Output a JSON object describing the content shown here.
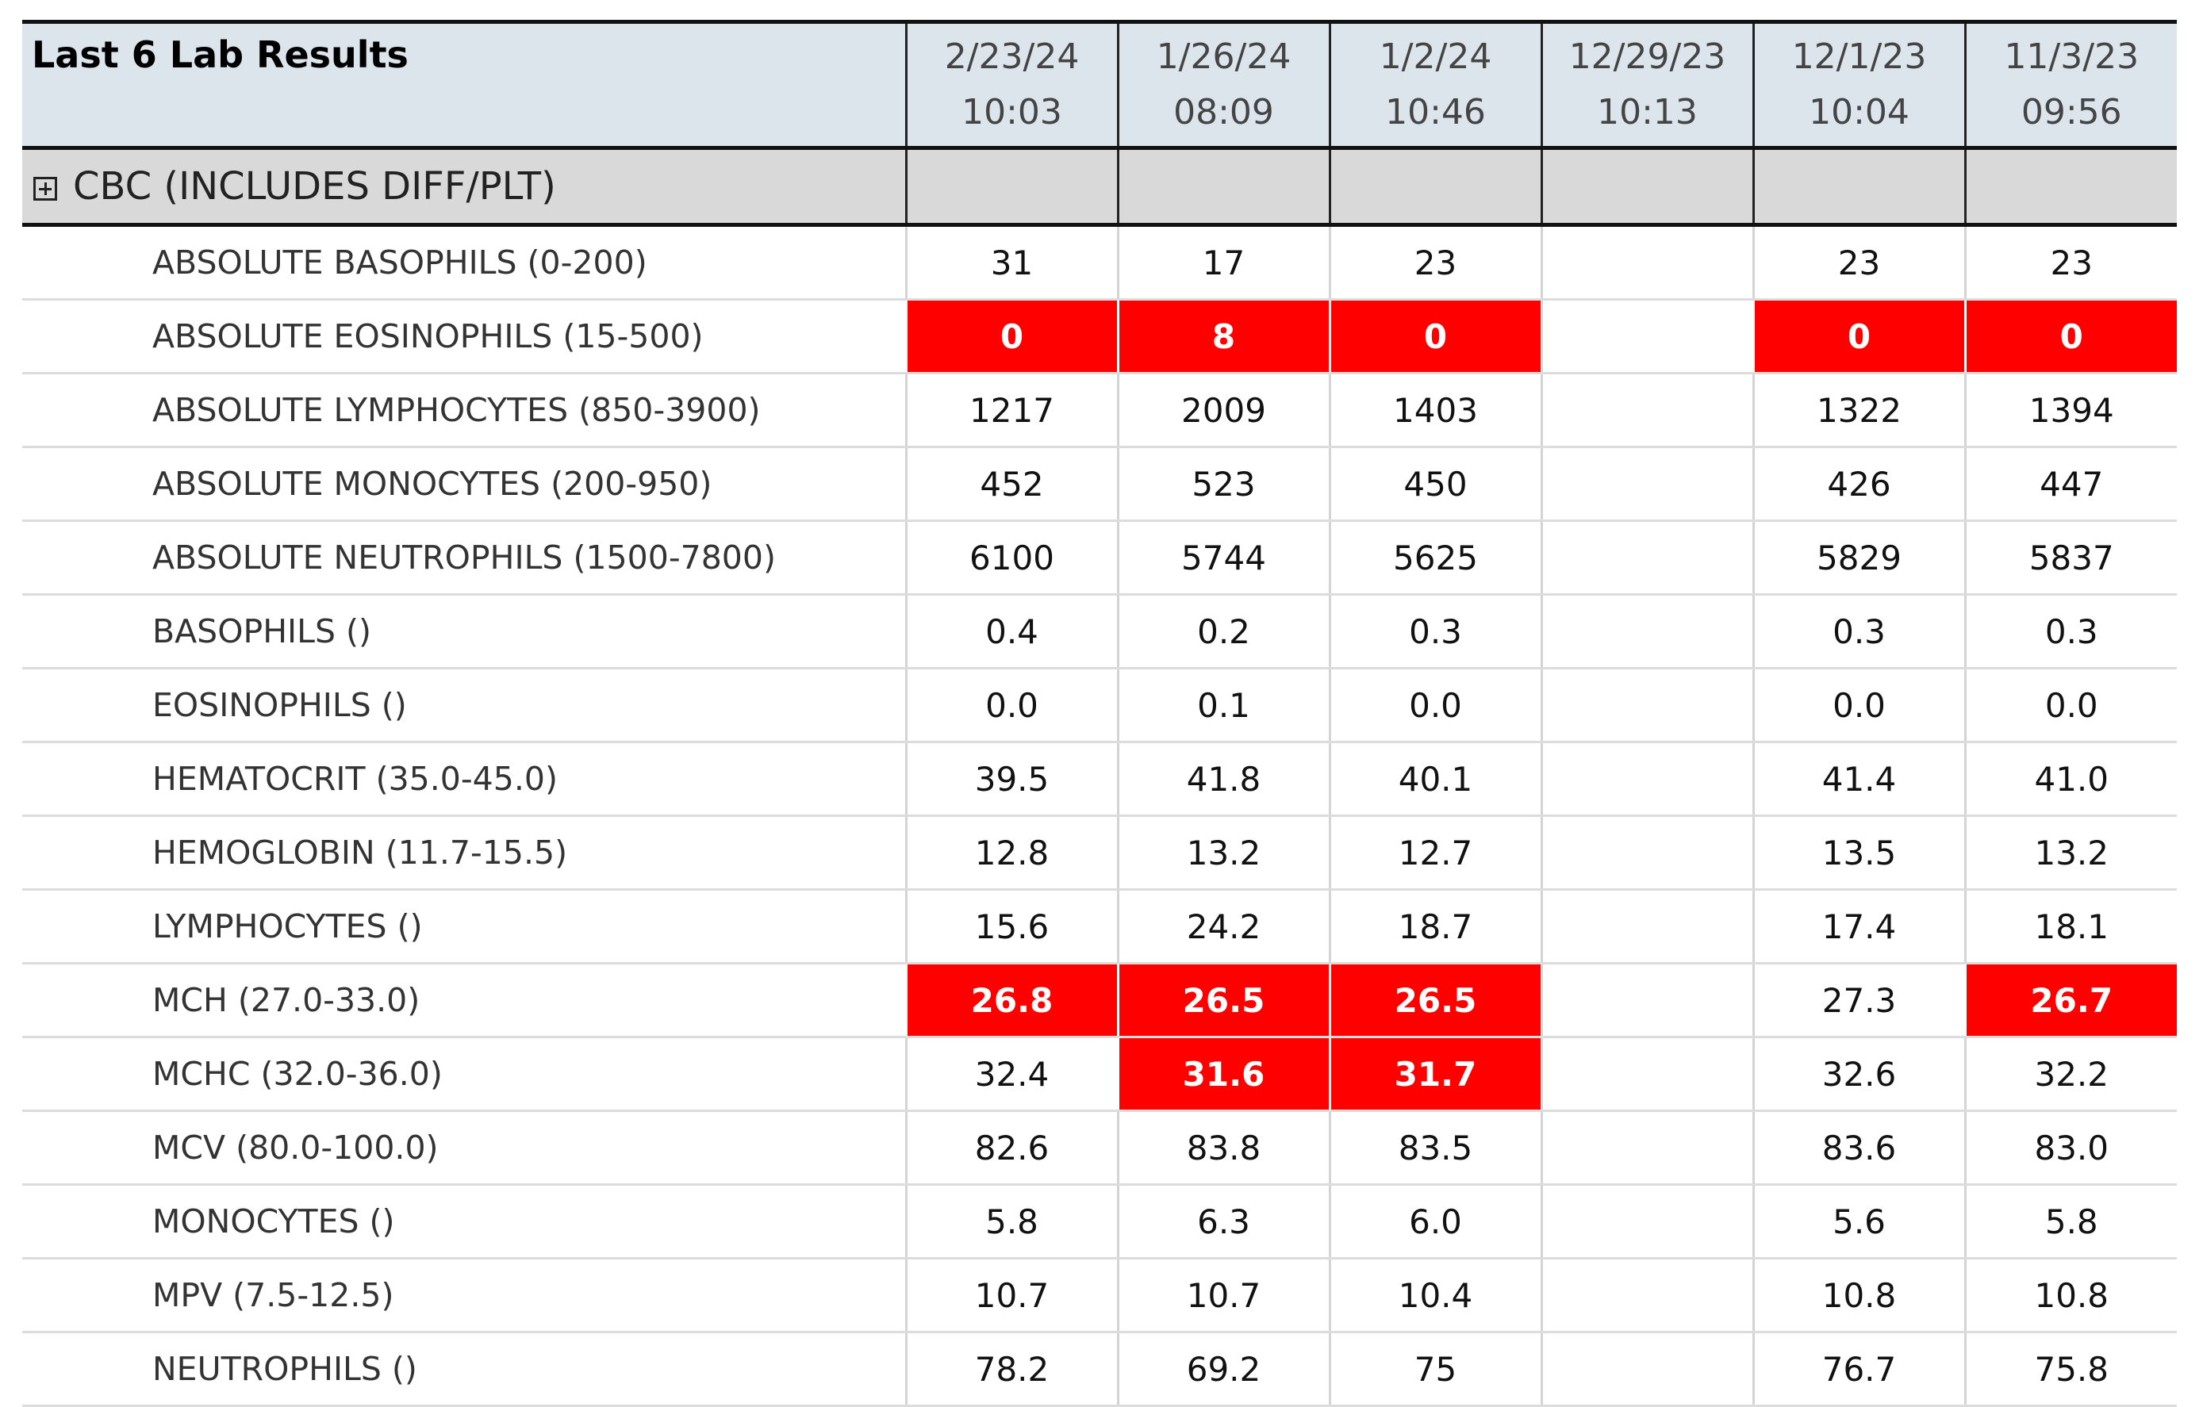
{
  "header": {
    "title": "Last 6 Lab Results",
    "columns": [
      {
        "date": "2/23/24",
        "time": "10:03"
      },
      {
        "date": "1/26/24",
        "time": "08:09"
      },
      {
        "date": "1/2/24",
        "time": "10:46"
      },
      {
        "date": "12/29/23",
        "time": "10:13"
      },
      {
        "date": "12/1/23",
        "time": "10:04"
      },
      {
        "date": "11/3/23",
        "time": "09:56"
      }
    ]
  },
  "group": {
    "label": "CBC (INCLUDES DIFF/PLT)"
  },
  "table": {
    "rows": [
      {
        "label": "ABSOLUTE BASOPHILS (0-200)",
        "values": [
          "31",
          "17",
          "23",
          null,
          "23",
          "23"
        ],
        "abnormal": [
          false,
          false,
          false,
          false,
          false,
          false
        ]
      },
      {
        "label": "ABSOLUTE EOSINOPHILS (15-500)",
        "values": [
          "0",
          "8",
          "0",
          null,
          "0",
          "0"
        ],
        "abnormal": [
          true,
          true,
          true,
          false,
          true,
          true
        ]
      },
      {
        "label": "ABSOLUTE LYMPHOCYTES (850-3900)",
        "values": [
          "1217",
          "2009",
          "1403",
          null,
          "1322",
          "1394"
        ],
        "abnormal": [
          false,
          false,
          false,
          false,
          false,
          false
        ]
      },
      {
        "label": "ABSOLUTE MONOCYTES (200-950)",
        "values": [
          "452",
          "523",
          "450",
          null,
          "426",
          "447"
        ],
        "abnormal": [
          false,
          false,
          false,
          false,
          false,
          false
        ]
      },
      {
        "label": "ABSOLUTE NEUTROPHILS (1500-7800)",
        "values": [
          "6100",
          "5744",
          "5625",
          null,
          "5829",
          "5837"
        ],
        "abnormal": [
          false,
          false,
          false,
          false,
          false,
          false
        ]
      },
      {
        "label": "BASOPHILS ()",
        "values": [
          "0.4",
          "0.2",
          "0.3",
          null,
          "0.3",
          "0.3"
        ],
        "abnormal": [
          false,
          false,
          false,
          false,
          false,
          false
        ]
      },
      {
        "label": "EOSINOPHILS ()",
        "values": [
          "0.0",
          "0.1",
          "0.0",
          null,
          "0.0",
          "0.0"
        ],
        "abnormal": [
          false,
          false,
          false,
          false,
          false,
          false
        ]
      },
      {
        "label": "HEMATOCRIT (35.0-45.0)",
        "values": [
          "39.5",
          "41.8",
          "40.1",
          null,
          "41.4",
          "41.0"
        ],
        "abnormal": [
          false,
          false,
          false,
          false,
          false,
          false
        ]
      },
      {
        "label": "HEMOGLOBIN (11.7-15.5)",
        "values": [
          "12.8",
          "13.2",
          "12.7",
          null,
          "13.5",
          "13.2"
        ],
        "abnormal": [
          false,
          false,
          false,
          false,
          false,
          false
        ]
      },
      {
        "label": "LYMPHOCYTES ()",
        "values": [
          "15.6",
          "24.2",
          "18.7",
          null,
          "17.4",
          "18.1"
        ],
        "abnormal": [
          false,
          false,
          false,
          false,
          false,
          false
        ]
      },
      {
        "label": "MCH (27.0-33.0)",
        "values": [
          "26.8",
          "26.5",
          "26.5",
          null,
          "27.3",
          "26.7"
        ],
        "abnormal": [
          true,
          true,
          true,
          false,
          false,
          true
        ]
      },
      {
        "label": "MCHC (32.0-36.0)",
        "values": [
          "32.4",
          "31.6",
          "31.7",
          null,
          "32.6",
          "32.2"
        ],
        "abnormal": [
          false,
          true,
          true,
          false,
          false,
          false
        ]
      },
      {
        "label": "MCV (80.0-100.0)",
        "values": [
          "82.6",
          "83.8",
          "83.5",
          null,
          "83.6",
          "83.0"
        ],
        "abnormal": [
          false,
          false,
          false,
          false,
          false,
          false
        ]
      },
      {
        "label": "MONOCYTES ()",
        "values": [
          "5.8",
          "6.3",
          "6.0",
          null,
          "5.6",
          "5.8"
        ],
        "abnormal": [
          false,
          false,
          false,
          false,
          false,
          false
        ]
      },
      {
        "label": "MPV (7.5-12.5)",
        "values": [
          "10.7",
          "10.7",
          "10.4",
          null,
          "10.8",
          "10.8"
        ],
        "abnormal": [
          false,
          false,
          false,
          false,
          false,
          false
        ]
      },
      {
        "label": "NEUTROPHILS ()",
        "values": [
          "78.2",
          "69.2",
          "75",
          null,
          "76.7",
          "75.8"
        ],
        "abnormal": [
          false,
          false,
          false,
          false,
          false,
          false
        ]
      }
    ]
  }
}
